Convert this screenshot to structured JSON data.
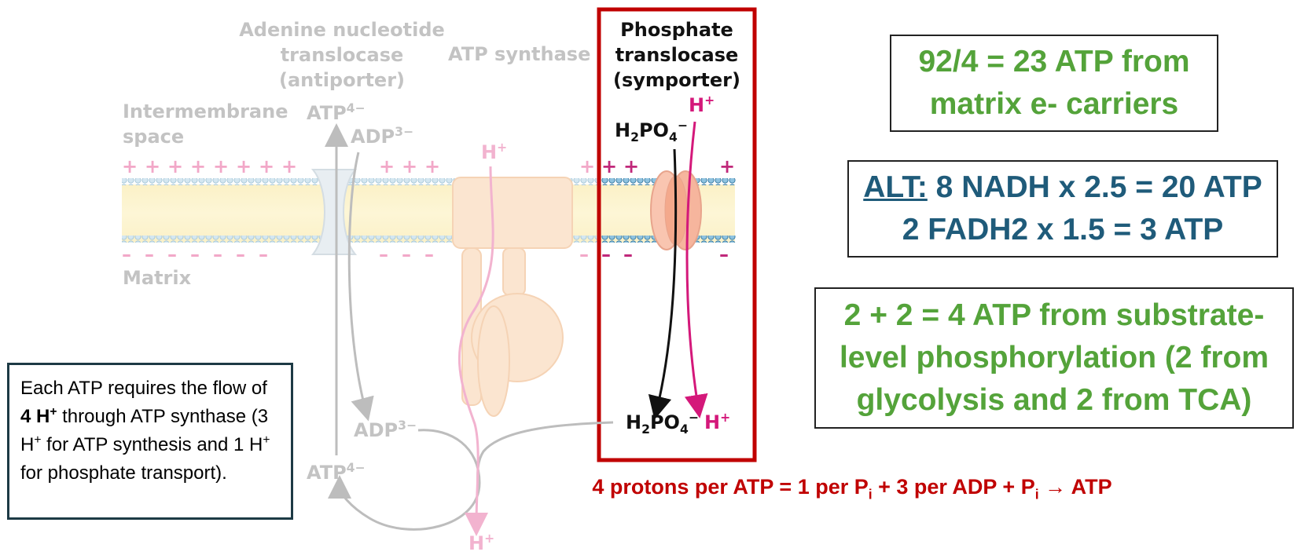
{
  "labels": {
    "adenine": [
      "Adenine nucleotide",
      "translocase",
      "(antiporter)"
    ],
    "atp_synthase": "ATP synthase",
    "phosphate": [
      "Phosphate",
      "translocase",
      "(symporter)"
    ],
    "intermembrane": [
      "Intermembrane",
      "space"
    ],
    "matrix": "Matrix",
    "plus": "+",
    "minus": "–",
    "atp": "ATP",
    "atp_charge": "4−",
    "adp": "ADP",
    "adp_charge": "3−",
    "h": "H",
    "h_charge": "+",
    "h2po4_a": "H",
    "h2po4_b": "2",
    "h2po4_c": "PO",
    "h2po4_d": "4",
    "h2po4_charge": "−"
  },
  "boxes": {
    "box1": [
      "92/4 = 23 ATP from",
      "matrix e- carriers"
    ],
    "box2_alt": "ALT:",
    "box2_line1": " 8 NADH x 2.5 = 20 ATP",
    "box2_line2": "2 FADH2 x 1.5 = 3 ATP",
    "box3": [
      "2 + 2 = 4 ATP from substrate-",
      "level phosphorylation (2 from",
      "glycolysis and 2 from TCA)"
    ]
  },
  "note": {
    "p1": "Each ATP requires the flow of ",
    "bold": "4 H",
    "bold_sup": "+",
    "p2": " through ATP synthase (3 H",
    "sup1": "+",
    "p3": " for ATP synthesis and 1 H",
    "sup2": "+",
    "p4": " for phosphate transport)."
  },
  "bottom": {
    "a": "4 protons per ATP = 1 per P",
    "i1": "i",
    "b": " + 3 per ADP + P",
    "i2": "i",
    "c": " → ATP"
  },
  "colors": {
    "faded": "#c3c3c3",
    "red_frame": "#c00000",
    "green": "#54a33a",
    "blue": "#1f5b7a",
    "magenta": "#d4187a",
    "pink_faded": "#f2b3cf",
    "note_border": "#1d3a45"
  }
}
